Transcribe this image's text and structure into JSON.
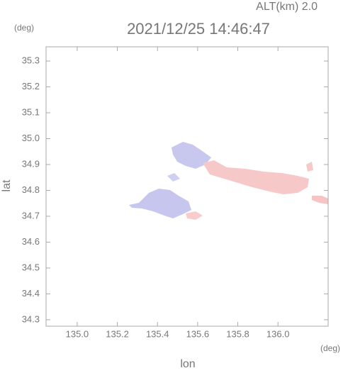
{
  "chart_data": {
    "type": "map",
    "title": "2021/12/25 14:46:47",
    "altitude_label": "ALT(km)  2.0",
    "x_label": "lon",
    "y_label": "lat",
    "x_unit": "(deg)",
    "y_unit": "(deg)",
    "xlim": [
      134.845,
      136.25
    ],
    "ylim": [
      34.275,
      35.355
    ],
    "xticks": [
      {
        "value": 135.0,
        "label": "135.0"
      },
      135.2,
      135.4,
      135.6,
      135.8,
      {
        "value": 136.0,
        "label": "136.0"
      }
    ],
    "yticks": [
      34.3,
      34.4,
      34.5,
      34.6,
      34.7,
      34.8,
      34.9,
      {
        "value": 35.0,
        "label": "35.0"
      },
      35.1,
      35.2,
      35.3
    ]
  }
}
